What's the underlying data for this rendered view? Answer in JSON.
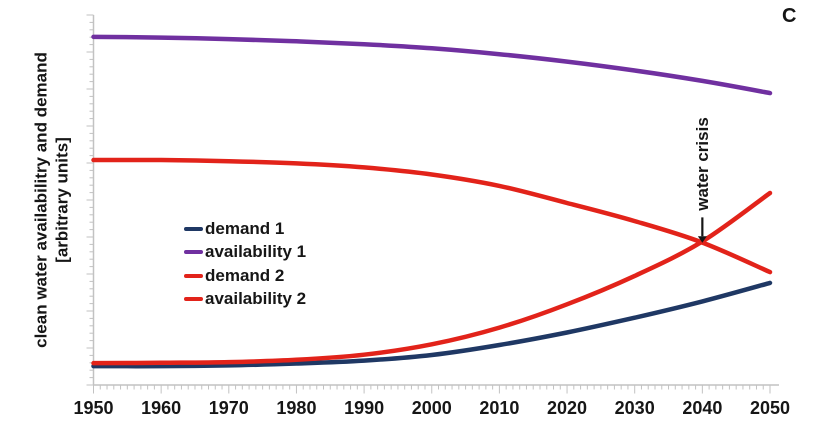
{
  "panel_label": "C",
  "chart_data": {
    "type": "line",
    "title": "",
    "xlabel": "",
    "ylabel": "clean water availabilitry and demand [arbitrary units]",
    "ylabel_line1": "clean water availabilitry and demand",
    "ylabel_line2": "[arbitrary units]",
    "x_ticks": [
      1950,
      1960,
      1970,
      1980,
      1990,
      2000,
      2010,
      2020,
      2030,
      2040,
      2050
    ],
    "xlim": [
      1950,
      2050
    ],
    "ylim": [
      0,
      100
    ],
    "grid": false,
    "legend_position": "middle-left",
    "axis_color": "#c2c2c2",
    "text_color": "#161616",
    "annotation": {
      "text": "water crisis",
      "x": 2040,
      "arrow_from_value": 45.3,
      "arrow_to_value": 40.2
    },
    "categories": [
      1950,
      1960,
      1970,
      1980,
      1990,
      2000,
      2010,
      2020,
      2030,
      2040,
      2050
    ],
    "series": [
      {
        "name": "demand 1",
        "color": "#1f3864",
        "values": [
          5.1,
          5.1,
          5.3,
          5.8,
          6.6,
          8.1,
          10.8,
          14.2,
          18.2,
          22.6,
          27.6
        ]
      },
      {
        "name": "availability 1",
        "color": "#7030a0",
        "values": [
          94.1,
          93.9,
          93.5,
          92.9,
          92.1,
          91.0,
          89.4,
          87.4,
          85.0,
          82.2,
          78.9
        ]
      },
      {
        "name": "demand 2",
        "color": "#e2231a",
        "values": [
          5.9,
          6.0,
          6.2,
          6.8,
          8.2,
          11.0,
          15.5,
          21.8,
          29.5,
          38.8,
          51.9
        ]
      },
      {
        "name": "availability 2",
        "color": "#e2231a",
        "values": [
          60.8,
          60.8,
          60.5,
          59.9,
          58.8,
          56.9,
          53.8,
          49.2,
          44.3,
          38.5,
          30.5
        ]
      }
    ]
  }
}
